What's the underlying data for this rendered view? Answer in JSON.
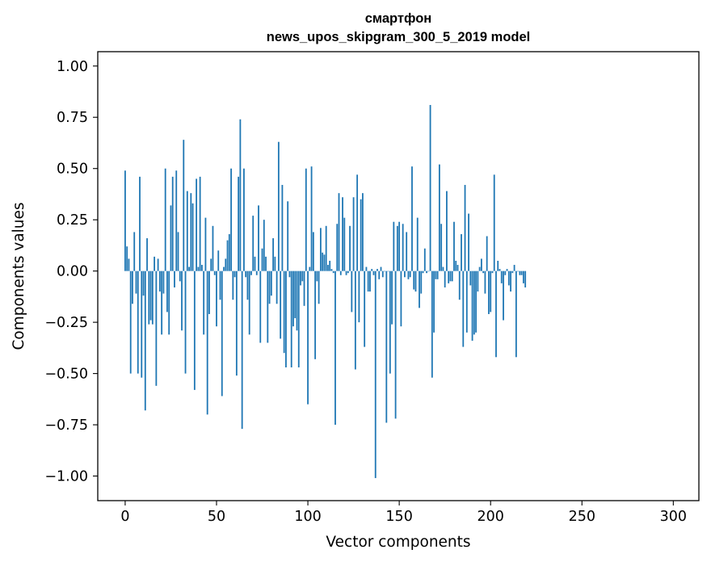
{
  "chart_data": {
    "type": "bar",
    "title": "смартфон",
    "subtitle": "news_upos_skipgram_300_5_2019 model",
    "xlabel": "Vector components",
    "ylabel": "Components values",
    "xlim": [
      -15,
      314
    ],
    "ylim": [
      -1.12,
      1.07
    ],
    "x_ticks": [
      0,
      50,
      100,
      150,
      200,
      250,
      300
    ],
    "x_tick_labels": [
      "0",
      "50",
      "100",
      "150",
      "200",
      "250",
      "300"
    ],
    "y_ticks": [
      1.0,
      0.75,
      0.5,
      0.25,
      0.0,
      -0.25,
      -0.5,
      -0.75,
      -1.0
    ],
    "y_tick_labels": [
      "1.00",
      "0.75",
      "0.50",
      "0.25",
      "0.00",
      "−0.25",
      "−0.50",
      "−0.75",
      "−1.00"
    ],
    "grid": false,
    "color": "#1f77b4",
    "values": [
      0.49,
      0.12,
      0.06,
      -0.5,
      -0.16,
      0.19,
      -0.11,
      -0.5,
      0.46,
      -0.52,
      -0.12,
      -0.68,
      0.16,
      -0.26,
      -0.24,
      -0.26,
      0.07,
      -0.56,
      0.06,
      -0.1,
      -0.31,
      -0.11,
      0.5,
      -0.2,
      -0.31,
      0.32,
      0.46,
      -0.08,
      0.49,
      0.19,
      -0.05,
      -0.29,
      0.64,
      -0.5,
      0.39,
      0.02,
      0.38,
      0.33,
      -0.58,
      0.45,
      0.02,
      0.46,
      0.03,
      -0.31,
      0.26,
      -0.7,
      -0.21,
      0.06,
      0.22,
      -0.02,
      -0.27,
      0.1,
      -0.14,
      -0.61,
      0.02,
      0.06,
      0.15,
      0.18,
      0.5,
      -0.14,
      -0.03,
      -0.51,
      0.46,
      0.74,
      -0.77,
      0.5,
      -0.03,
      -0.14,
      -0.31,
      -0.02,
      0.27,
      0.07,
      -0.02,
      0.32,
      -0.35,
      0.11,
      0.25,
      0.07,
      -0.35,
      -0.16,
      -0.12,
      0.16,
      0.07,
      -0.16,
      0.63,
      -0.33,
      0.42,
      -0.4,
      -0.47,
      0.34,
      -0.03,
      -0.47,
      -0.27,
      -0.23,
      -0.29,
      -0.47,
      -0.07,
      -0.05,
      -0.17,
      0.5,
      -0.65,
      0.02,
      0.51,
      0.19,
      -0.43,
      -0.05,
      -0.16,
      0.21,
      0.09,
      0.08,
      0.22,
      0.03,
      0.05,
      0.01,
      -0.01,
      -0.75,
      0.23,
      0.38,
      -0.02,
      0.36,
      0.26,
      -0.02,
      -0.01,
      0.22,
      -0.2,
      0.36,
      -0.48,
      0.47,
      -0.25,
      0.35,
      0.38,
      -0.37,
      0.02,
      -0.1,
      -0.1,
      0.01,
      -0.02,
      -1.01,
      0.01,
      -0.04,
      0.02,
      -0.03,
      0.0,
      -0.74,
      0.0,
      -0.5,
      -0.26,
      0.24,
      -0.72,
      0.22,
      0.24,
      -0.27,
      0.23,
      -0.03,
      0.19,
      -0.04,
      -0.03,
      0.51,
      -0.09,
      -0.1,
      0.26,
      -0.18,
      -0.11,
      -0.01,
      0.11,
      -0.01,
      0.0,
      0.81,
      -0.52,
      -0.3,
      -0.04,
      -0.04,
      0.52,
      0.23,
      0.02,
      -0.08,
      0.39,
      -0.06,
      -0.05,
      -0.05,
      0.24,
      0.05,
      0.03,
      -0.14,
      0.18,
      -0.37,
      0.42,
      -0.3,
      0.28,
      -0.07,
      -0.34,
      -0.31,
      -0.3,
      -0.1,
      0.02,
      0.06,
      -0.01,
      -0.11,
      0.17,
      -0.21,
      -0.2,
      -0.01,
      0.47,
      -0.42,
      0.05,
      0.01,
      -0.06,
      -0.24,
      -0.02,
      0.01,
      -0.07,
      -0.1,
      -0.01,
      0.03,
      -0.42,
      0.0,
      -0.02,
      -0.02,
      -0.06,
      -0.08
    ]
  }
}
